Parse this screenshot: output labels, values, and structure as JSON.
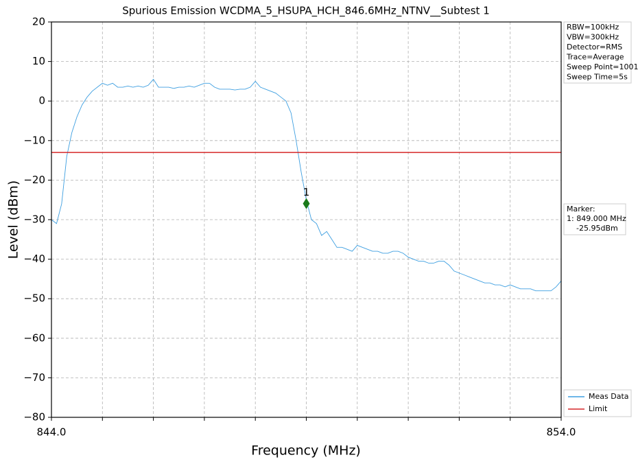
{
  "chart_data": {
    "type": "line",
    "title": "Spurious Emission WCDMA_5_HSUPA_HCH_846.6MHz_NTNV__Subtest 1",
    "xlabel": "Frequency (MHz)",
    "ylabel": "Level (dBm)",
    "xlim": [
      844,
      854
    ],
    "ylim": [
      -80,
      20
    ],
    "xticks": [
      {
        "value": 844,
        "label": "844.0"
      },
      {
        "value": 854,
        "label": "854.0"
      }
    ],
    "xminor_ticks": [
      845,
      846,
      847,
      848,
      849,
      850,
      851,
      852,
      853
    ],
    "yticks": [
      {
        "value": -80,
        "label": "−80"
      },
      {
        "value": -70,
        "label": "−70"
      },
      {
        "value": -60,
        "label": "−60"
      },
      {
        "value": -50,
        "label": "−50"
      },
      {
        "value": -40,
        "label": "−40"
      },
      {
        "value": -30,
        "label": "−30"
      },
      {
        "value": -20,
        "label": "−20"
      },
      {
        "value": -10,
        "label": "−10"
      },
      0,
      10,
      20
    ],
    "grid": true,
    "legend": "lower right outside",
    "series": [
      {
        "name": "Meas Data",
        "color": "#3c9ee0",
        "x": [
          844.0,
          844.1,
          844.2,
          844.3,
          844.4,
          844.5,
          844.6,
          844.7,
          844.8,
          844.9,
          845.0,
          845.1,
          845.2,
          845.3,
          845.4,
          845.5,
          845.6,
          845.7,
          845.8,
          845.9,
          846.0,
          846.1,
          846.2,
          846.3,
          846.4,
          846.5,
          846.6,
          846.7,
          846.8,
          846.9,
          847.0,
          847.1,
          847.2,
          847.3,
          847.4,
          847.5,
          847.6,
          847.7,
          847.8,
          847.9,
          848.0,
          848.1,
          848.2,
          848.3,
          848.4,
          848.5,
          848.6,
          848.7,
          848.8,
          848.9,
          849.0,
          849.1,
          849.2,
          849.3,
          849.4,
          849.5,
          849.6,
          849.7,
          849.8,
          849.9,
          850.0,
          850.1,
          850.2,
          850.3,
          850.4,
          850.5,
          850.6,
          850.7,
          850.8,
          850.9,
          851.0,
          851.1,
          851.2,
          851.3,
          851.4,
          851.5,
          851.6,
          851.7,
          851.8,
          851.9,
          852.0,
          852.1,
          852.2,
          852.3,
          852.4,
          852.5,
          852.6,
          852.7,
          852.8,
          852.9,
          853.0,
          853.1,
          853.2,
          853.3,
          853.4,
          853.5,
          853.6,
          853.7,
          853.8,
          853.9,
          854.0
        ],
        "values": [
          -30,
          -31,
          -26,
          -14,
          -8,
          -4,
          -1,
          1,
          2.5,
          3.5,
          4.5,
          4,
          4.5,
          3.5,
          3.5,
          3.8,
          3.5,
          3.8,
          3.5,
          4,
          5.5,
          3.5,
          3.5,
          3.5,
          3.2,
          3.5,
          3.5,
          3.8,
          3.5,
          4,
          4.5,
          4.5,
          3.5,
          3,
          3,
          3,
          2.8,
          3,
          3,
          3.5,
          5,
          3.5,
          3,
          2.5,
          2,
          1,
          0,
          -3,
          -10,
          -18,
          -25,
          -30,
          -31,
          -34,
          -33,
          -35,
          -37,
          -37,
          -37.5,
          -38,
          -36.5,
          -37,
          -37.5,
          -38,
          -38,
          -38.5,
          -38.5,
          -38,
          -38,
          -38.5,
          -39.5,
          -40,
          -40.5,
          -40.5,
          -41,
          -41,
          -40.5,
          -40.5,
          -41.5,
          -43,
          -43.5,
          -44,
          -44.5,
          -45,
          -45.5,
          -46,
          -46,
          -46.5,
          -46.5,
          -47,
          -46.5,
          -47,
          -47.5,
          -47.5,
          -47.5,
          -48,
          -48,
          -48,
          -48,
          -47,
          -45.5
        ]
      },
      {
        "name": "Limit",
        "color": "#d62728",
        "x": [
          844,
          854
        ],
        "values": [
          -13,
          -13
        ]
      }
    ],
    "marker": {
      "label": "1",
      "x": 849,
      "y": -25.95,
      "color": "#1a7a1a"
    },
    "settings_box": [
      "RBW=100kHz",
      "VBW=300kHz",
      "Detector=RMS",
      "Trace=Average",
      "Sweep Point=1001",
      "Sweep Time=5s"
    ],
    "marker_box": [
      "Marker:",
      "1: 849.000 MHz",
      "-25.95dBm"
    ]
  }
}
